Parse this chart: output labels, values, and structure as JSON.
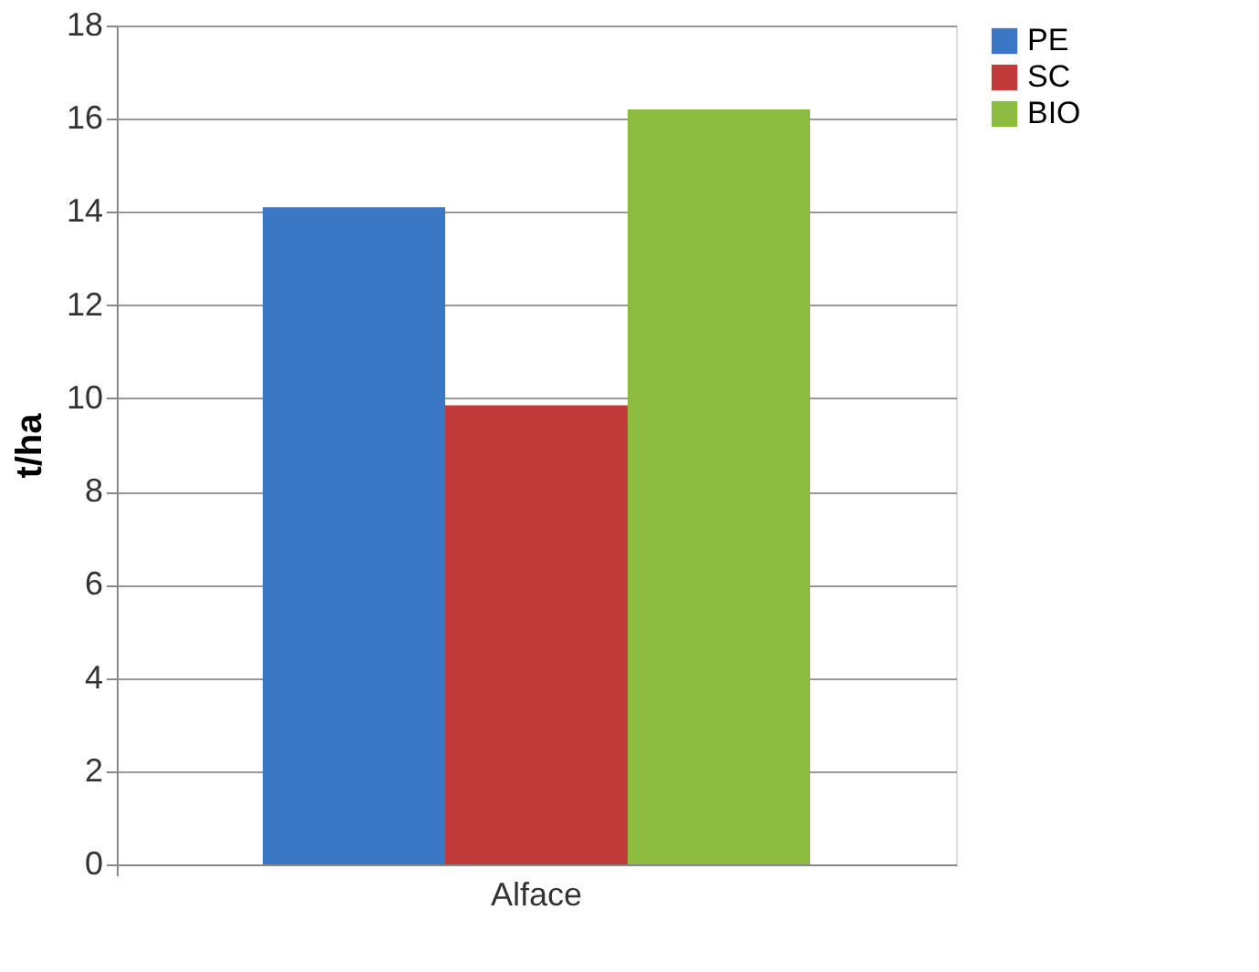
{
  "chart_data": {
    "type": "bar",
    "ylabel": "t/ha",
    "categories": [
      "Alface"
    ],
    "series": [
      {
        "name": "PE",
        "color": "#3a78c6",
        "values": [
          14.1
        ]
      },
      {
        "name": "SC",
        "color": "#c13a3a",
        "values": [
          9.85
        ]
      },
      {
        "name": "BIO",
        "color": "#8cbb40",
        "values": [
          16.2
        ]
      }
    ],
    "ylim": [
      0,
      18
    ],
    "yticks": [
      0,
      2,
      4,
      6,
      8,
      10,
      12,
      14,
      16,
      18
    ],
    "grid": "y",
    "legend": "right"
  }
}
